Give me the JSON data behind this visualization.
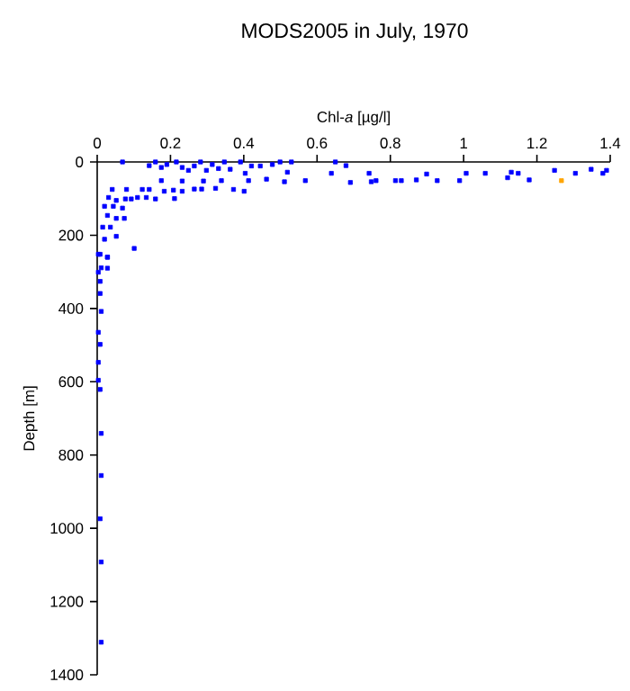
{
  "chart_data": {
    "type": "scatter",
    "title": "MODS2005 in July, 1970",
    "xlabel": "Chl-*a* [µg/l]",
    "ylabel": "Depth [m]",
    "xlim": [
      0,
      1.4
    ],
    "ylim": [
      1400,
      0
    ],
    "xticks": [
      0,
      0.2,
      0.4,
      0.6,
      0.8,
      1,
      1.2,
      1.4
    ],
    "yticks": [
      0,
      200,
      400,
      600,
      800,
      1000,
      1200,
      1400
    ],
    "marker": "square",
    "series": [
      {
        "color": "#0000ff",
        "x": [
          0.069,
          0.142,
          0.159,
          0.175,
          0.19,
          0.216,
          0.232,
          0.249,
          0.265,
          0.282,
          0.298,
          0.314,
          0.331,
          0.347,
          0.363,
          0.391,
          0.404,
          0.421,
          0.445,
          0.462,
          0.478,
          0.499,
          0.519,
          0.511,
          0.53,
          0.568,
          0.639,
          0.65,
          0.679,
          0.691,
          0.742,
          0.748,
          0.761,
          0.814,
          0.83,
          0.871,
          0.899,
          0.928,
          0.989,
          1.007,
          1.059,
          1.12,
          1.13,
          1.149,
          1.179,
          1.248,
          1.305,
          1.348,
          1.38,
          1.39,
          0.041,
          0.08,
          0.123,
          0.142,
          0.11,
          0.134,
          0.159,
          0.183,
          0.208,
          0.211,
          0.232,
          0.265,
          0.285,
          0.323,
          0.372,
          0.401,
          0.175,
          0.232,
          0.29,
          0.339,
          0.413,
          0.031,
          0.052,
          0.077,
          0.093,
          0.02,
          0.044,
          0.069,
          0.028,
          0.052,
          0.074,
          0.015,
          0.036,
          0.052,
          0.02,
          0.101,
          0.008,
          0.028,
          0.028,
          0.003,
          0.008,
          0.003,
          0.028,
          0.011,
          0.008,
          0.011,
          0.003,
          0.008,
          0.003,
          0.003,
          0.008,
          0.011,
          0.011,
          0.008,
          0.011,
          0.011
        ],
        "values": [
          0,
          10,
          0,
          15,
          7,
          0,
          15,
          23,
          11,
          0,
          23,
          7,
          18,
          0,
          20,
          0,
          31,
          11,
          11,
          47,
          7,
          0,
          28,
          54,
          0,
          51,
          31,
          0,
          10,
          56,
          31,
          54,
          51,
          51,
          51,
          49,
          33,
          51,
          51,
          31,
          31,
          43,
          28,
          31,
          49,
          23,
          31,
          20,
          31,
          23,
          75,
          75,
          75,
          75,
          97,
          97,
          101,
          80,
          77,
          100,
          80,
          74,
          74,
          72,
          75,
          80,
          51,
          52,
          52,
          51,
          51,
          97,
          105,
          101,
          101,
          121,
          121,
          126,
          146,
          154,
          154,
          178,
          178,
          203,
          211,
          236,
          252,
          260,
          290,
          301,
          326,
          252,
          260,
          289,
          359,
          408,
          465,
          498,
          547,
          596,
          621,
          741,
          856,
          974,
          1092,
          1311
        ]
      },
      {
        "color": "#ffa500",
        "x": [
          1.267
        ],
        "values": [
          51
        ]
      }
    ]
  }
}
